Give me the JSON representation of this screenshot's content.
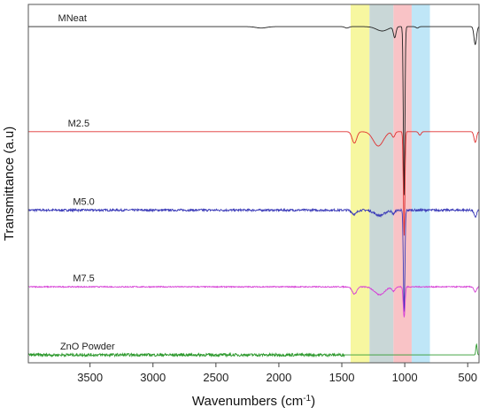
{
  "chart_data": {
    "type": "line",
    "title": "",
    "xlabel": "Wavenumbers (cm",
    "xlabel_sup": "-1",
    "xlabel_suffix": ")",
    "ylabel": "Transmittance (a.u)",
    "x_reversed": true,
    "xlim": [
      3990,
      410
    ],
    "ylim": [
      0,
      1
    ],
    "y_ticks_shown": false,
    "grid": false,
    "legend": "labels above each trace",
    "x_ticks": [
      3500,
      3000,
      2500,
      2000,
      1500,
      1000,
      500
    ],
    "x_tick_labels": [
      "3500",
      "3000",
      "2500",
      "2000",
      "1500",
      "1000",
      "500"
    ],
    "bands": [
      {
        "from": 1430,
        "to": 1280,
        "color": "#f7f7a0"
      },
      {
        "from": 1280,
        "to": 1090,
        "color": "#c9d7d7"
      },
      {
        "from": 1090,
        "to": 945,
        "color": "#f9c3c6"
      },
      {
        "from": 945,
        "to": 800,
        "color": "#bfe6f7"
      }
    ],
    "series": [
      {
        "name": "MNeat",
        "color": "#222222",
        "baseline": 0.938,
        "label_x": 3640,
        "noise": 0.0,
        "features": [
          {
            "x": 2140,
            "depth": 0.004,
            "width": 40
          },
          {
            "x": 1460,
            "depth": 0.004,
            "width": 15
          },
          {
            "x": 1180,
            "depth": 0.012,
            "width": 45
          },
          {
            "x": 1080,
            "depth": 0.03,
            "width": 10
          },
          {
            "x": 1005,
            "depth": 0.47,
            "width": 6
          },
          {
            "x": 900,
            "depth": 0.004,
            "width": 10
          },
          {
            "x": 440,
            "depth": 0.05,
            "width": 10
          }
        ]
      },
      {
        "name": "M2.5",
        "color": "#e03030",
        "baseline": 0.645,
        "label_x": 3590,
        "noise": 0.0,
        "features": [
          {
            "x": 1400,
            "depth": 0.032,
            "width": 18
          },
          {
            "x": 1210,
            "depth": 0.04,
            "width": 40
          },
          {
            "x": 1090,
            "depth": 0.015,
            "width": 12
          },
          {
            "x": 1005,
            "depth": 0.29,
            "width": 6
          },
          {
            "x": 880,
            "depth": 0.01,
            "width": 10
          },
          {
            "x": 440,
            "depth": 0.03,
            "width": 10
          }
        ]
      },
      {
        "name": "M5.0",
        "color": "#3a3ab8",
        "baseline": 0.426,
        "label_x": 3550,
        "noise": 0.003,
        "features": [
          {
            "x": 1400,
            "depth": 0.012,
            "width": 18
          },
          {
            "x": 1200,
            "depth": 0.015,
            "width": 40
          },
          {
            "x": 1090,
            "depth": 0.01,
            "width": 12
          },
          {
            "x": 1005,
            "depth": 0.285,
            "width": 6
          },
          {
            "x": 440,
            "depth": 0.02,
            "width": 10
          }
        ]
      },
      {
        "name": "M7.5",
        "color": "#d640d6",
        "baseline": 0.212,
        "label_x": 3550,
        "noise": 0.0015,
        "features": [
          {
            "x": 1400,
            "depth": 0.02,
            "width": 18
          },
          {
            "x": 1200,
            "depth": 0.022,
            "width": 40
          },
          {
            "x": 1090,
            "depth": 0.012,
            "width": 12
          },
          {
            "x": 1005,
            "depth": 0.085,
            "width": 7
          },
          {
            "x": 440,
            "depth": 0.015,
            "width": 10
          }
        ]
      },
      {
        "name": "ZnO Powder",
        "color": "#2f9a2f",
        "baseline": 0.022,
        "label_x": 3520,
        "noise": 0.004,
        "noise_range": [
          3990,
          1480
        ],
        "features": [
          {
            "x": 430,
            "depth": -0.03,
            "width": 5
          }
        ]
      }
    ]
  }
}
